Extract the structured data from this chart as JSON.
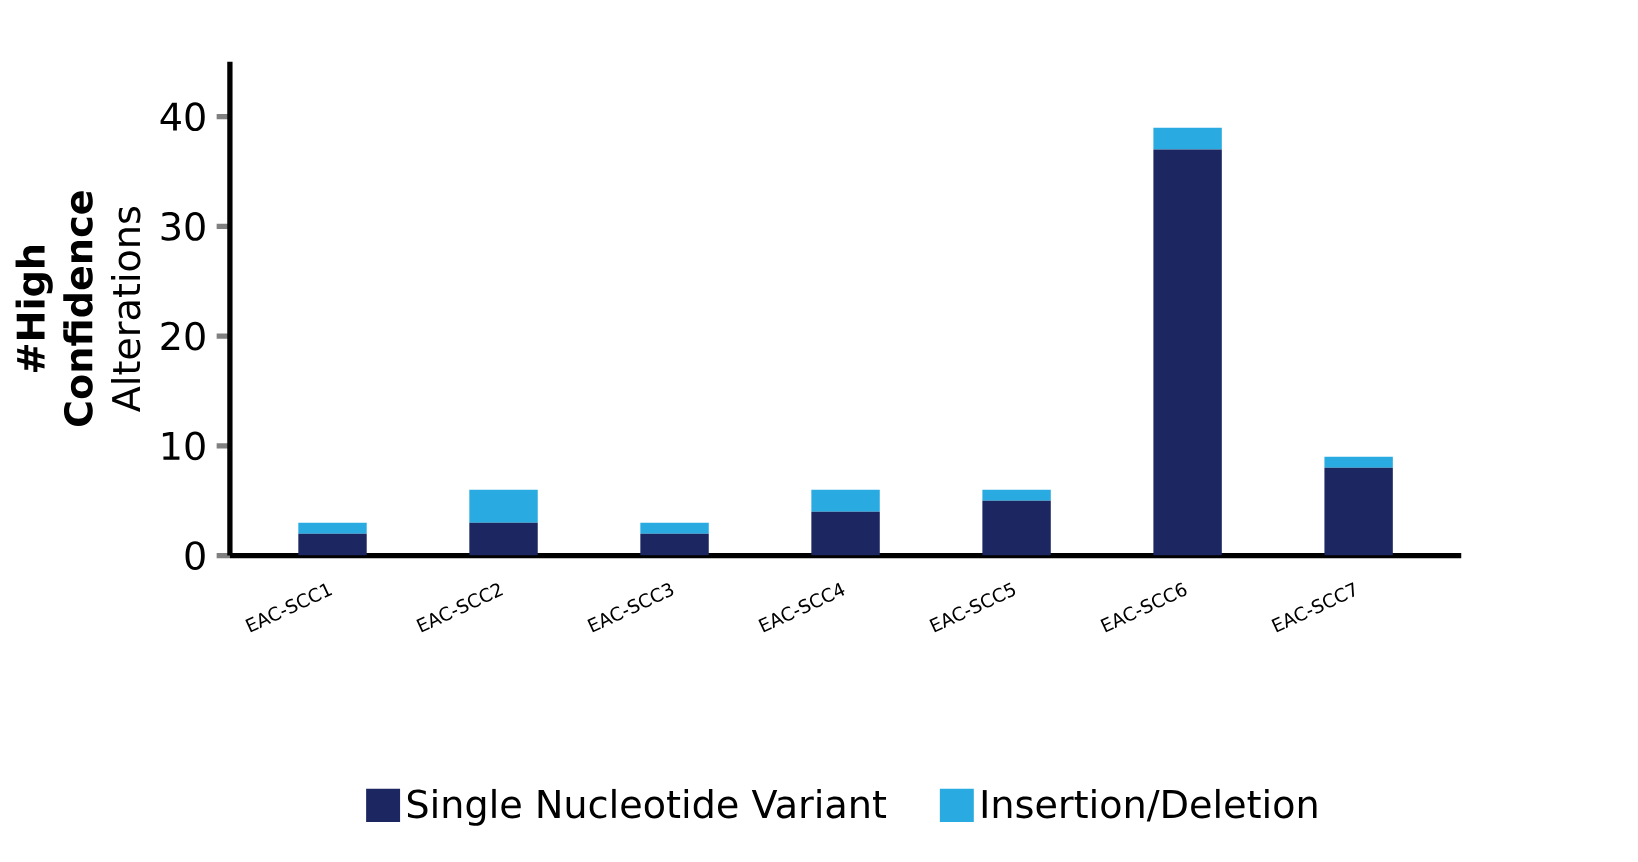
{
  "chart_data": {
    "type": "bar",
    "stacked": true,
    "ylabel": "**#High Confidence** Alterations",
    "categories": [
      "EAC-SCC1",
      "EAC-SCC2",
      "EAC-SCC3",
      "EAC-SCC4",
      "EAC-SCC5",
      "EAC-SCC6",
      "EAC-SCC7"
    ],
    "series": [
      {
        "name": "Single Nucleotide Variant",
        "color": "#1c2660",
        "values": [
          2,
          3,
          2,
          4,
          5,
          37,
          8
        ]
      },
      {
        "name": "Insertion/Deletion",
        "color": "#29abe2",
        "values": [
          1,
          3,
          1,
          2,
          1,
          2,
          1
        ]
      }
    ],
    "ylim": [
      0,
      45
    ],
    "yticks": [
      0,
      10,
      20,
      30,
      40
    ],
    "grid": false,
    "legend": "bottom"
  }
}
